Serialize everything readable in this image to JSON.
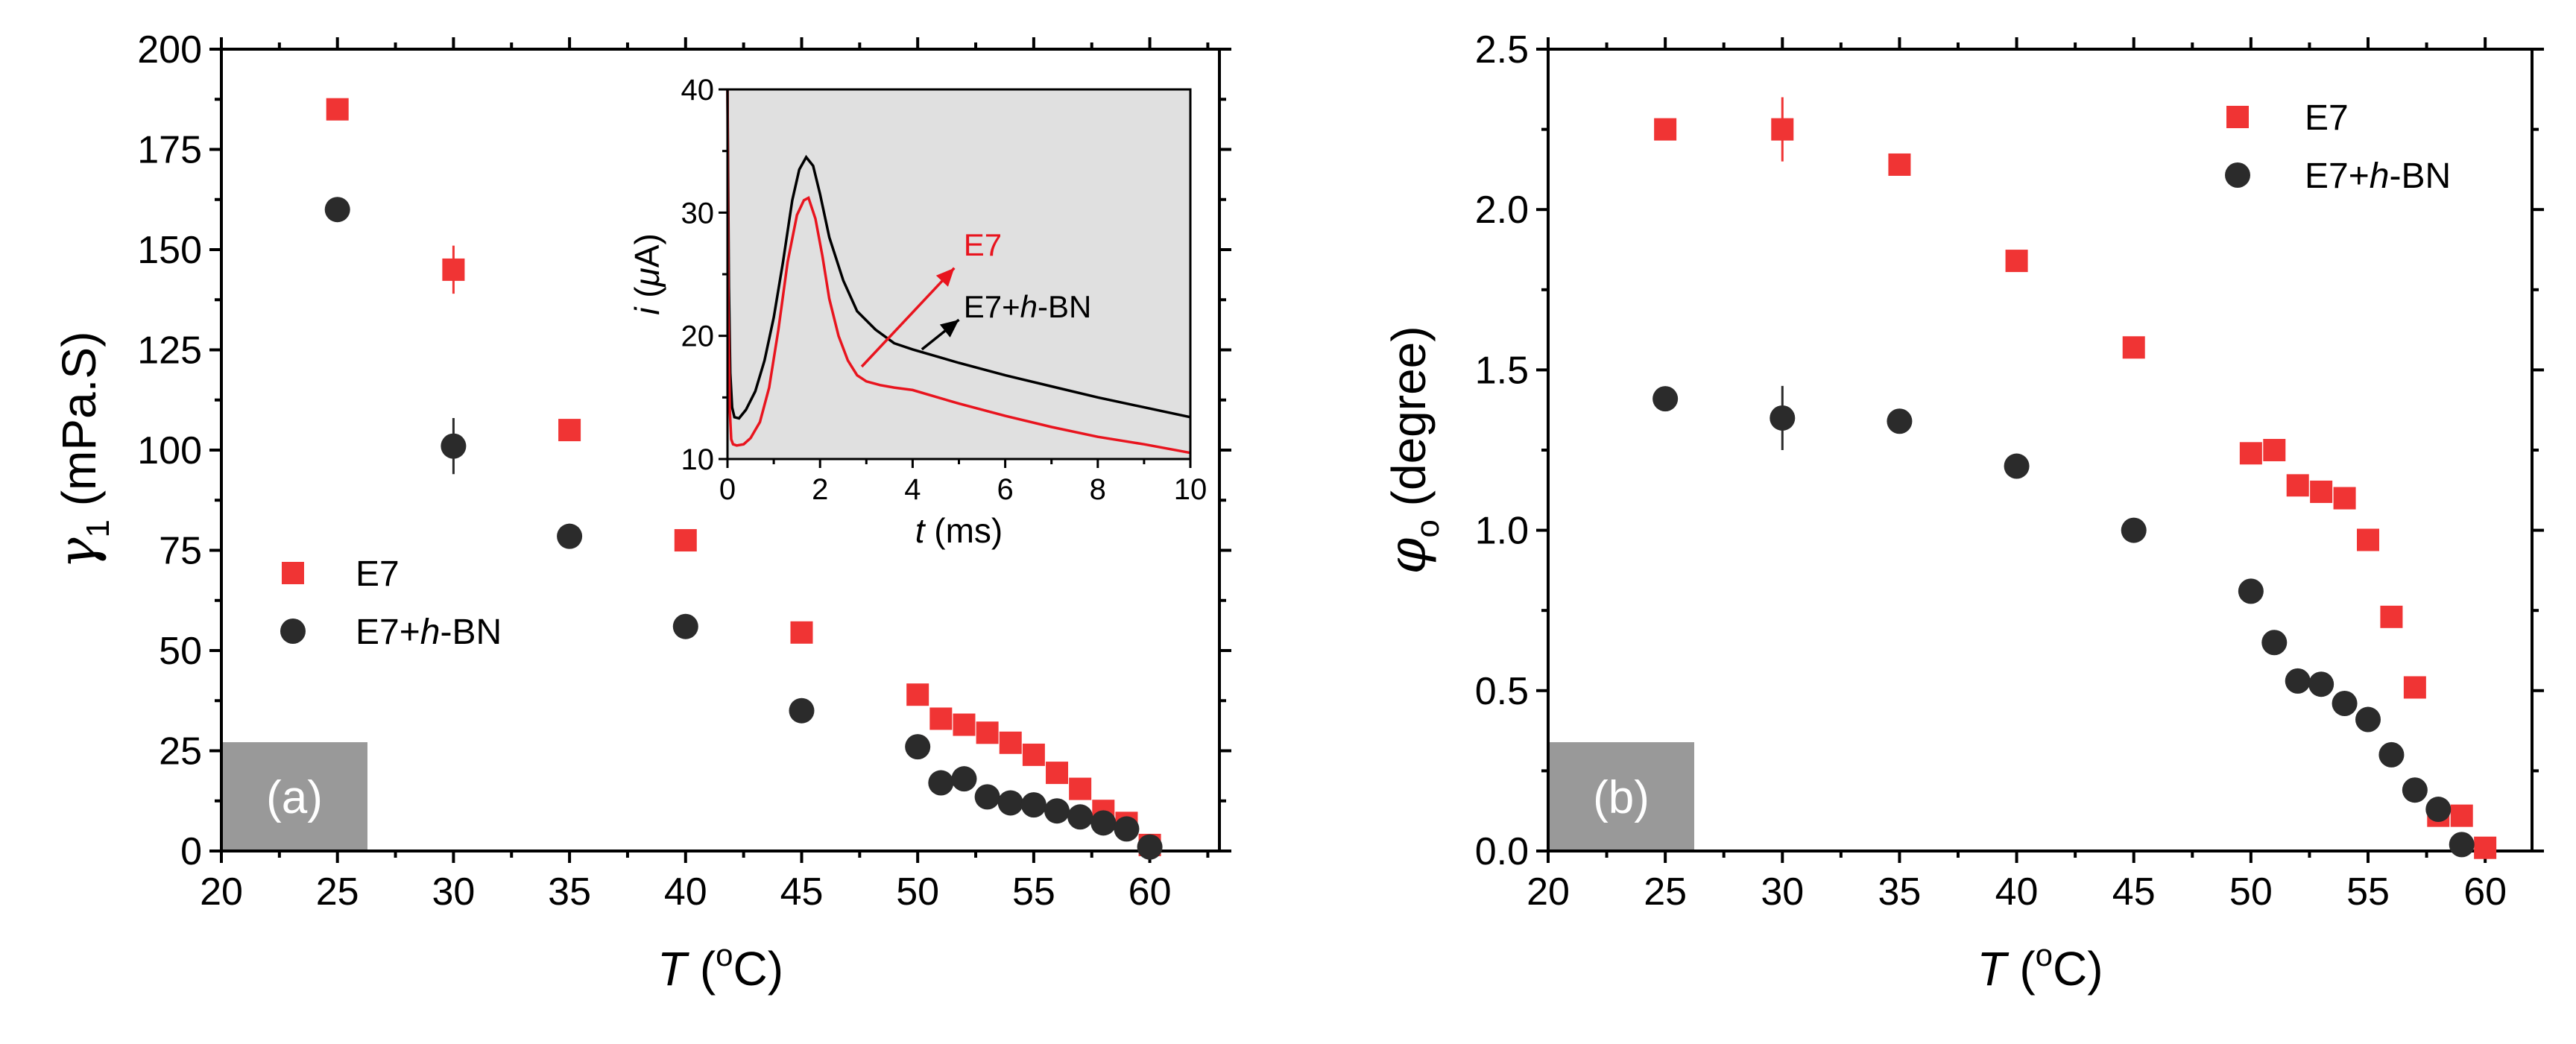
{
  "colors": {
    "e7": "#f03434",
    "e7_hbn": "#2b2b2b",
    "inset_bg": "#e0e0e0",
    "panel_label_bg": "#999999",
    "inset_e7_curve": "#e8141e",
    "inset_e7hbn_curve": "#000000"
  },
  "chart_data": [
    {
      "panel": "a",
      "type": "scatter",
      "panel_label": "(a)",
      "xlabel": {
        "italic": "T",
        "rest": " (",
        "sup": "o",
        "unit": "C)"
      },
      "ylabel": {
        "symbol": "γ",
        "sub": "1",
        "unit": " (mPa.S)"
      },
      "xlim": [
        20,
        63
      ],
      "ylim": [
        0,
        200
      ],
      "xticks": [
        20,
        25,
        30,
        35,
        40,
        45,
        50,
        55,
        60
      ],
      "yticks": [
        0,
        25,
        50,
        75,
        100,
        125,
        150,
        175,
        200
      ],
      "legend": {
        "position": "lower-left",
        "entries": [
          {
            "series": "E7",
            "text": "E7",
            "italic": "",
            "rest": ""
          },
          {
            "series": "E7+h-BN",
            "text": "E7+",
            "italic": "h",
            "rest": "-BN"
          }
        ]
      },
      "series": [
        {
          "name": "E7",
          "marker": "square",
          "points": [
            [
              25,
              185
            ],
            [
              30,
              145
            ],
            [
              35,
              105
            ],
            [
              40,
              77.5
            ],
            [
              45,
              54.5
            ],
            [
              50,
              39
            ],
            [
              51,
              33
            ],
            [
              52,
              31.5
            ],
            [
              53,
              29.5
            ],
            [
              54,
              27
            ],
            [
              55,
              24
            ],
            [
              56,
              19.5
            ],
            [
              57,
              15.5
            ],
            [
              58,
              10
            ],
            [
              59,
              7
            ],
            [
              60,
              1.5
            ]
          ],
          "errors": [
            [
              30,
              6
            ]
          ]
        },
        {
          "name": "E7+h-BN",
          "marker": "circle",
          "points": [
            [
              25,
              160
            ],
            [
              30,
              101
            ],
            [
              35,
              78.5
            ],
            [
              40,
              56
            ],
            [
              45,
              35
            ],
            [
              50,
              26
            ],
            [
              51,
              17
            ],
            [
              52,
              18
            ],
            [
              53,
              13.5
            ],
            [
              54,
              12
            ],
            [
              55,
              11.5
            ],
            [
              56,
              10
            ],
            [
              57,
              8.5
            ],
            [
              58,
              7
            ],
            [
              59,
              5.5
            ],
            [
              60,
              1
            ]
          ],
          "errors": [
            [
              30,
              7
            ]
          ]
        }
      ],
      "inset": {
        "type": "line",
        "xlabel": {
          "italic": "t",
          "rest": " (ms)"
        },
        "ylabel": {
          "italic": "i",
          "rest": " (",
          "mu": "μ",
          "unit": "A)"
        },
        "xlim": [
          0,
          10
        ],
        "ylim": [
          10,
          40
        ],
        "xticks": [
          0,
          2,
          4,
          6,
          8,
          10
        ],
        "yticks": [
          10,
          20,
          30,
          40
        ],
        "annotations": [
          {
            "series": "E7",
            "text": "E7",
            "italic": "",
            "rest": ""
          },
          {
            "series": "E7+h-BN",
            "text": "E7+",
            "italic": "h",
            "rest": "-BN"
          }
        ],
        "series": [
          {
            "name": "E7+h-BN",
            "x": [
              0,
              0.03,
              0.06,
              0.1,
              0.15,
              0.25,
              0.4,
              0.6,
              0.8,
              1.0,
              1.2,
              1.4,
              1.55,
              1.7,
              1.85,
              2.0,
              2.2,
              2.5,
              2.8,
              3.2,
              3.6,
              4.0,
              5,
              6,
              7,
              8,
              9,
              10
            ],
            "y": [
              40,
              24,
              17,
              14.2,
              13.4,
              13.3,
              14,
              15.5,
              18,
              21.5,
              26,
              31,
              33.5,
              34.5,
              33.8,
              31.5,
              28,
              24.5,
              22,
              20.5,
              19.4,
              18.9,
              17.8,
              16.8,
              15.9,
              15,
              14.2,
              13.4
            ]
          },
          {
            "name": "E7",
            "x": [
              0,
              0.02,
              0.05,
              0.08,
              0.12,
              0.2,
              0.35,
              0.5,
              0.7,
              0.9,
              1.1,
              1.3,
              1.5,
              1.65,
              1.75,
              1.9,
              2.05,
              2.2,
              2.4,
              2.6,
              2.8,
              3.0,
              3.3,
              3.6,
              4,
              5,
              6,
              7,
              8,
              9,
              10
            ],
            "y": [
              40,
              22,
              14,
              11.6,
              11.2,
              11.1,
              11.2,
              11.7,
              13,
              15.8,
              20.5,
              26,
              29.8,
              31,
              31.2,
              29.5,
              26.5,
              23,
              20,
              18,
              16.8,
              16.3,
              16,
              15.8,
              15.6,
              14.5,
              13.5,
              12.6,
              11.8,
              11.2,
              10.5
            ]
          }
        ]
      }
    },
    {
      "panel": "b",
      "type": "scatter",
      "panel_label": "(b)",
      "xlabel": {
        "italic": "T",
        "rest": " (",
        "sup": "o",
        "unit": "C)"
      },
      "ylabel": {
        "symbol": "φ",
        "sub": "o",
        "unit": " (degree)"
      },
      "xlim": [
        20,
        62
      ],
      "ylim": [
        0,
        2.5
      ],
      "xticks": [
        20,
        25,
        30,
        35,
        40,
        45,
        50,
        55,
        60
      ],
      "yticks": [
        0.0,
        0.5,
        1.0,
        1.5,
        2.0,
        2.5
      ],
      "legend": {
        "position": "top-right",
        "entries": [
          {
            "series": "E7",
            "text": "E7",
            "italic": "",
            "rest": ""
          },
          {
            "series": "E7+h-BN",
            "text": "E7+",
            "italic": "h",
            "rest": "-BN"
          }
        ]
      },
      "series": [
        {
          "name": "E7",
          "marker": "square",
          "points": [
            [
              25,
              2.25
            ],
            [
              30,
              2.25
            ],
            [
              35,
              2.14
            ],
            [
              40,
              1.84
            ],
            [
              45,
              1.57
            ],
            [
              50,
              1.24
            ],
            [
              51,
              1.25
            ],
            [
              52,
              1.14
            ],
            [
              53,
              1.12
            ],
            [
              54,
              1.1
            ],
            [
              55,
              0.97
            ],
            [
              56,
              0.73
            ],
            [
              57,
              0.51
            ],
            [
              58,
              0.11
            ],
            [
              59,
              0.11
            ],
            [
              60,
              0.01
            ]
          ],
          "errors": [
            [
              30,
              0.1
            ]
          ]
        },
        {
          "name": "E7+h-BN",
          "marker": "circle",
          "points": [
            [
              25,
              1.41
            ],
            [
              30,
              1.35
            ],
            [
              35,
              1.34
            ],
            [
              40,
              1.2
            ],
            [
              45,
              1.0
            ],
            [
              50,
              0.81
            ],
            [
              51,
              0.65
            ],
            [
              52,
              0.53
            ],
            [
              53,
              0.52
            ],
            [
              54,
              0.46
            ],
            [
              55,
              0.41
            ],
            [
              56,
              0.3
            ],
            [
              57,
              0.19
            ],
            [
              58,
              0.13
            ],
            [
              59,
              0.02
            ]
          ],
          "errors": [
            [
              30,
              0.1
            ]
          ]
        }
      ]
    }
  ]
}
